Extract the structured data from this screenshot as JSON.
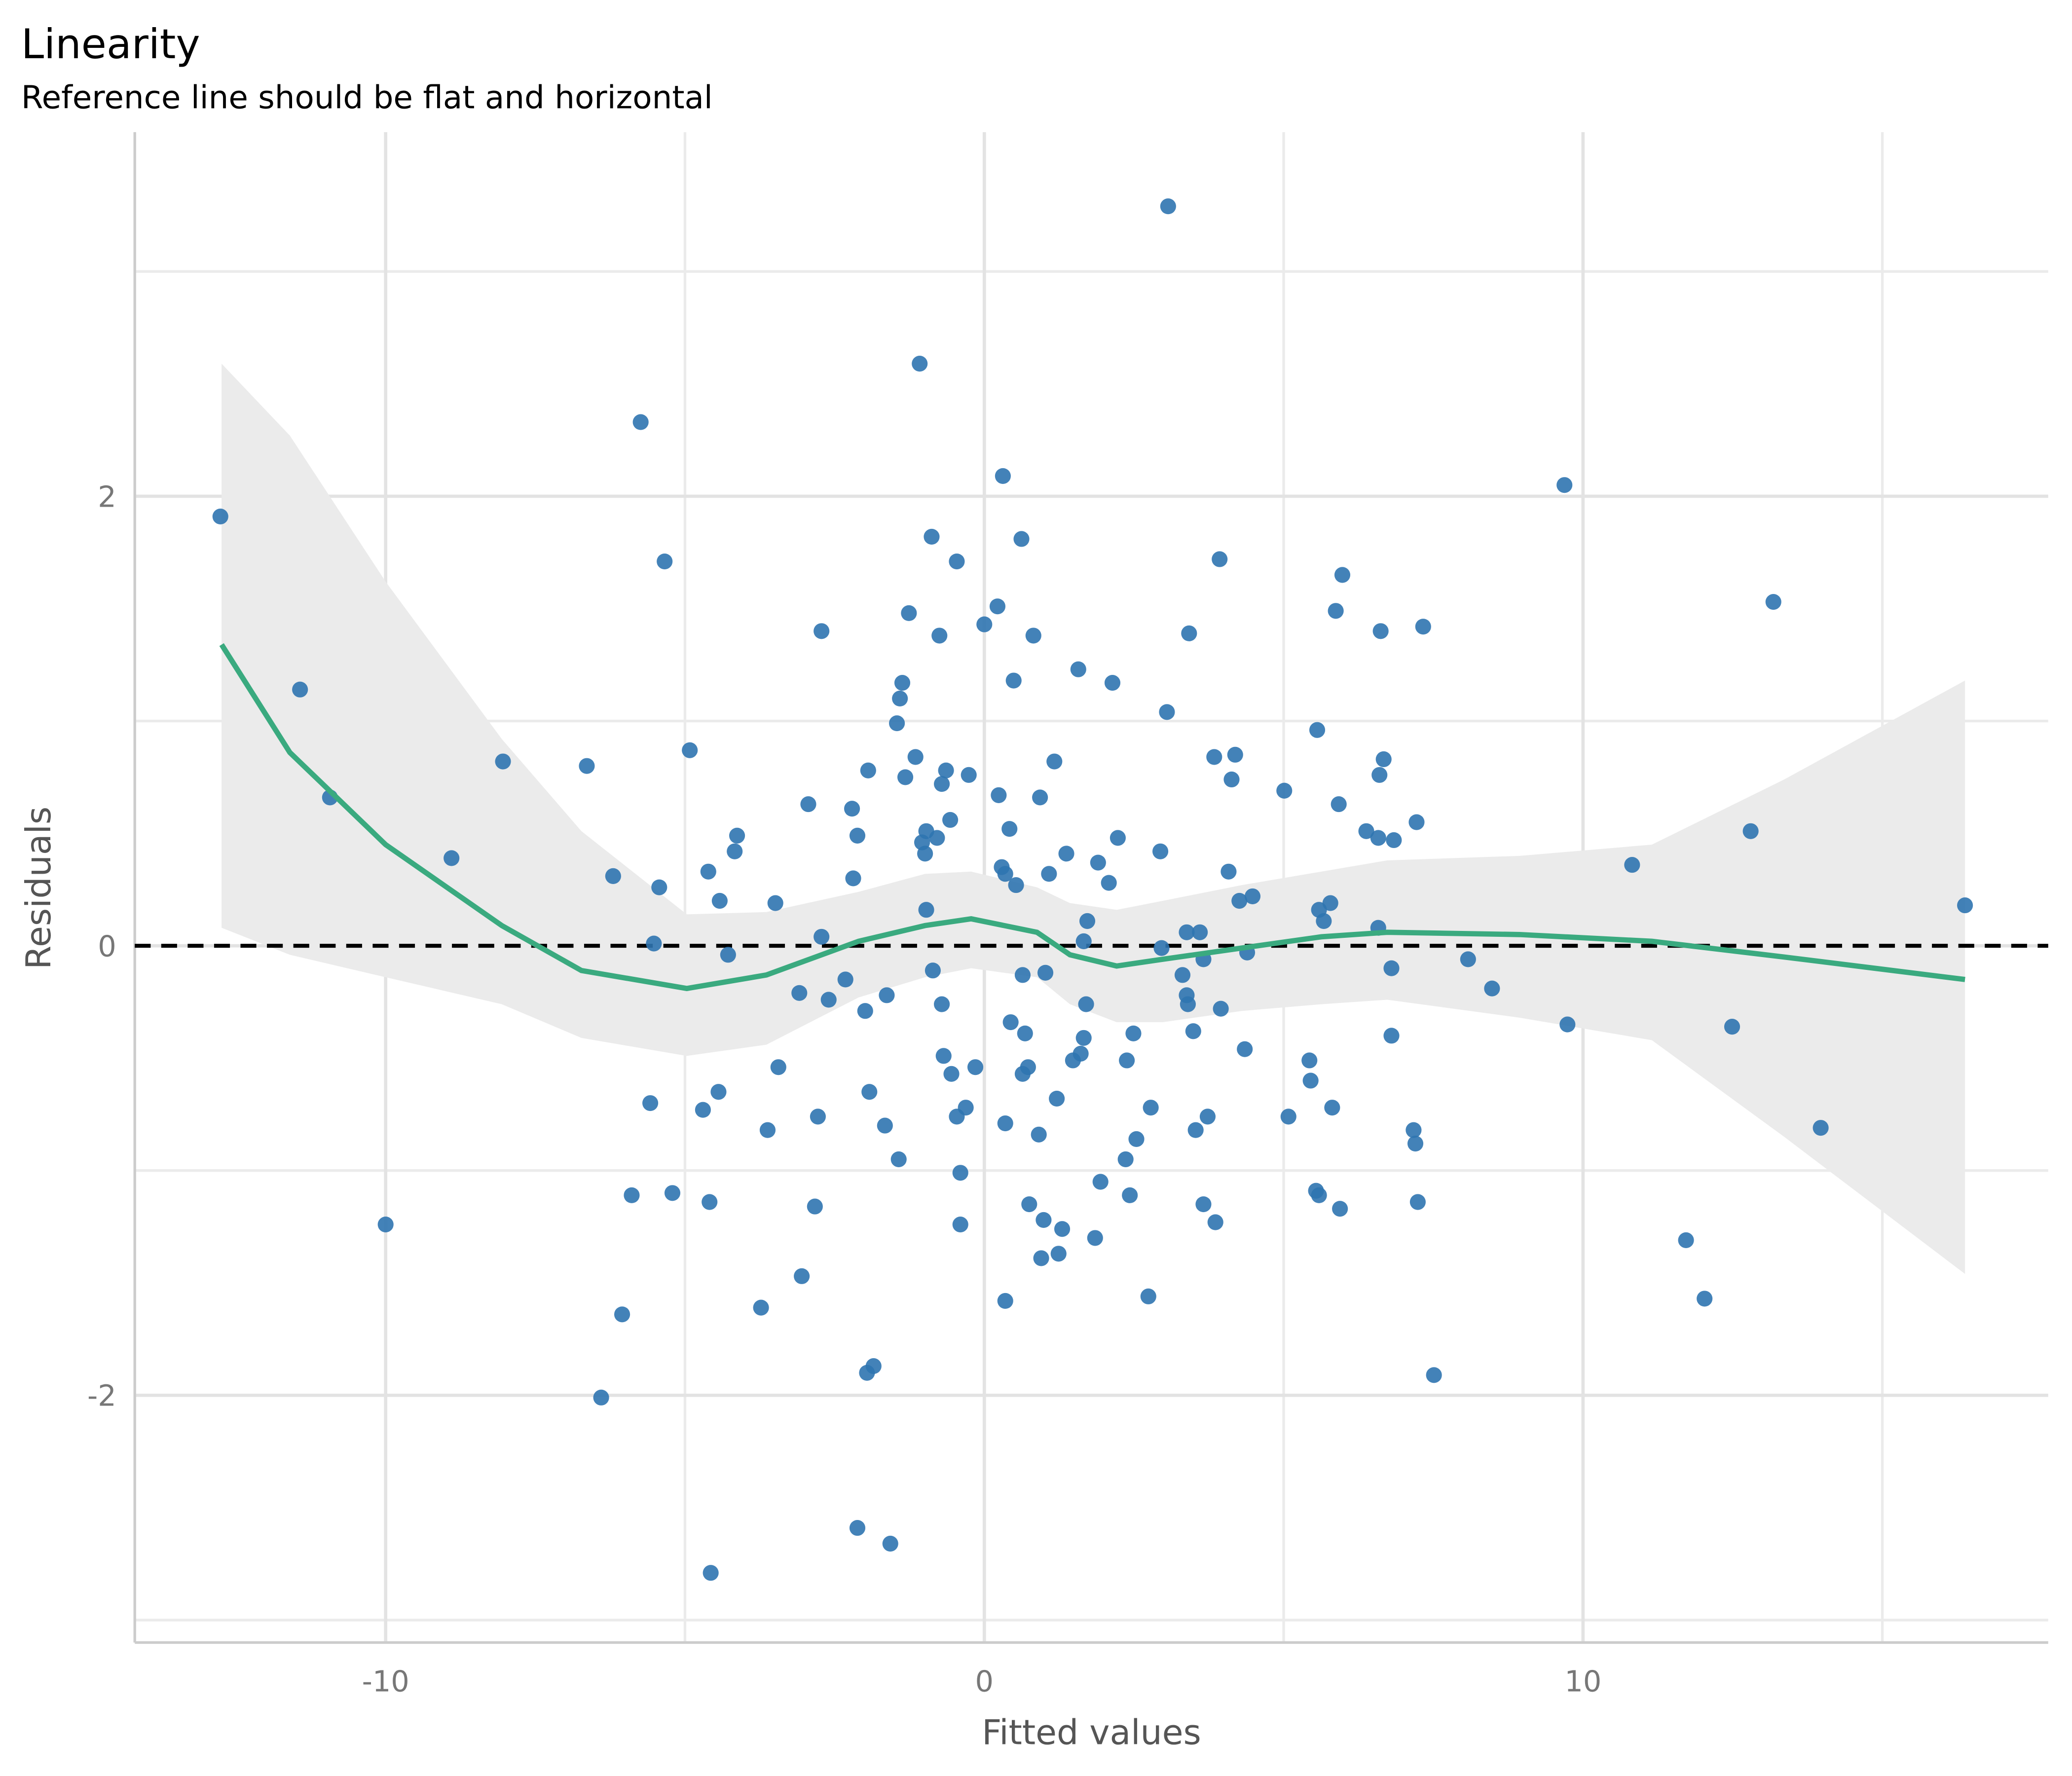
{
  "chart_data": {
    "type": "scatter",
    "title": "Linearity",
    "subtitle": "Reference line should be flat and horizontal",
    "x_label": "Fitted values",
    "y_label": "Residuals",
    "xlim": [
      -14.19,
      17.77
    ],
    "ylim": [
      -3.1,
      3.62
    ],
    "xticks": [
      -10,
      0,
      10
    ],
    "yticks": [
      -2,
      0,
      2
    ],
    "minor_xticks": [
      -5,
      5,
      15
    ],
    "minor_yticks": [
      -3,
      -1,
      1,
      3
    ],
    "grid": true,
    "reference_line": {
      "value": 0,
      "color": "#000000"
    },
    "points": {
      "color": "#2f74b0",
      "x": [
        -12.76,
        -11.43,
        -10.93,
        -10.0,
        -8.9,
        -8.04,
        -6.64,
        -6.4,
        -6.2,
        -6.05,
        -5.89,
        -5.74,
        -5.58,
        -5.52,
        -5.43,
        -5.34,
        -5.21,
        -4.92,
        -4.7,
        -4.61,
        -4.59,
        -4.57,
        -4.44,
        -4.42,
        -4.28,
        -4.17,
        -4.13,
        -3.73,
        -3.62,
        -3.49,
        -3.44,
        -3.09,
        -3.05,
        -2.94,
        -2.83,
        -2.78,
        -2.72,
        -2.72,
        -2.6,
        -2.32,
        -2.21,
        -2.19,
        -2.12,
        -2.12,
        -1.99,
        -1.96,
        -1.94,
        -1.92,
        -1.85,
        -1.66,
        -1.63,
        -1.57,
        -1.46,
        -1.43,
        -1.41,
        -1.37,
        -1.32,
        -1.26,
        -1.15,
        -1.08,
        -1.04,
        -0.99,
        -0.97,
        -0.97,
        -0.88,
        -0.86,
        -0.79,
        -0.75,
        -0.71,
        -0.71,
        -0.68,
        -0.64,
        -0.57,
        -0.55,
        -0.46,
        -0.46,
        -0.4,
        -0.4,
        -0.31,
        -0.26,
        -0.15,
        0.0,
        0.22,
        0.24,
        0.29,
        0.31,
        0.35,
        0.35,
        0.35,
        0.42,
        0.44,
        0.49,
        0.53,
        0.62,
        0.64,
        0.64,
        0.68,
        0.73,
        0.75,
        0.82,
        0.91,
        0.93,
        0.95,
        0.99,
        1.02,
        1.08,
        1.17,
        1.21,
        1.24,
        1.3,
        1.37,
        1.48,
        1.57,
        1.61,
        1.66,
        1.66,
        1.7,
        1.72,
        1.85,
        1.9,
        1.94,
        2.08,
        2.14,
        2.23,
        2.36,
        2.38,
        2.43,
        2.49,
        2.54,
        2.74,
        2.78,
        2.94,
        2.96,
        3.05,
        3.07,
        3.31,
        3.38,
        3.38,
        3.4,
        3.42,
        3.49,
        3.53,
        3.6,
        3.66,
        3.66,
        3.73,
        3.84,
        3.86,
        3.93,
        3.95,
        4.08,
        4.13,
        4.19,
        4.26,
        4.35,
        4.39,
        4.48,
        5.01,
        5.08,
        5.43,
        5.45,
        5.54,
        5.56,
        5.59,
        5.59,
        5.67,
        5.78,
        5.81,
        5.87,
        5.92,
        5.94,
        5.98,
        6.38,
        6.58,
        6.58,
        6.6,
        6.62,
        6.67,
        6.8,
        6.8,
        6.84,
        7.17,
        7.2,
        7.22,
        7.24,
        7.33,
        7.51,
        8.08,
        8.48,
        9.69,
        9.74,
        10.82,
        11.72,
        12.03,
        12.49,
        12.8,
        13.18,
        13.97,
        16.38
      ],
      "y": [
        1.91,
        1.14,
        0.66,
        -1.24,
        0.39,
        0.82,
        0.8,
        -2.01,
        0.31,
        -1.64,
        -1.11,
        2.33,
        -0.7,
        0.01,
        0.26,
        1.71,
        -1.1,
        0.87,
        -0.73,
        0.33,
        -1.14,
        -2.79,
        -0.65,
        0.2,
        -0.04,
        0.42,
        0.49,
        -1.61,
        -0.82,
        0.19,
        -0.54,
        -0.21,
        -1.47,
        0.63,
        -1.16,
        -0.76,
        1.4,
        0.04,
        -0.24,
        -0.15,
        0.61,
        0.3,
        0.49,
        -2.59,
        -0.29,
        -1.9,
        0.78,
        -0.65,
        -1.87,
        -0.8,
        -0.22,
        -2.66,
        0.99,
        -0.95,
        1.1,
        1.17,
        0.75,
        1.48,
        0.84,
        2.59,
        0.46,
        0.41,
        0.51,
        0.16,
        1.82,
        -0.11,
        0.48,
        1.38,
        0.72,
        -0.26,
        -0.49,
        0.78,
        0.56,
        -0.57,
        1.71,
        -0.76,
        -1.24,
        -1.01,
        -0.72,
        0.76,
        -0.54,
        1.43,
        1.51,
        0.67,
        0.35,
        2.09,
        0.32,
        -0.79,
        -1.58,
        0.52,
        -0.34,
        1.18,
        0.27,
        1.81,
        -0.13,
        -0.57,
        -0.39,
        -0.54,
        -1.15,
        1.38,
        -0.84,
        0.66,
        -1.39,
        -1.22,
        -0.12,
        0.32,
        0.82,
        -0.68,
        -1.37,
        -1.26,
        0.41,
        -0.51,
        1.23,
        -0.48,
        -0.41,
        0.02,
        -0.26,
        0.11,
        -1.3,
        0.37,
        -1.05,
        0.28,
        1.17,
        0.48,
        -0.95,
        -0.51,
        -1.11,
        -0.39,
        -0.86,
        -1.56,
        -0.72,
        0.42,
        -0.01,
        1.04,
        3.29,
        -0.13,
        0.06,
        -0.22,
        -0.26,
        1.39,
        -0.38,
        -0.82,
        0.06,
        -0.06,
        -1.15,
        -0.76,
        0.84,
        -1.23,
        1.72,
        -0.28,
        0.33,
        0.74,
        0.85,
        0.2,
        -0.46,
        -0.03,
        0.22,
        0.69,
        -0.76,
        -0.51,
        -0.6,
        -1.09,
        0.96,
        0.16,
        -1.11,
        0.11,
        0.19,
        -0.72,
        1.49,
        0.63,
        -1.17,
        1.65,
        0.51,
        0.08,
        0.48,
        0.76,
        1.4,
        0.83,
        -0.1,
        -0.4,
        0.47,
        -0.82,
        -0.88,
        0.55,
        -1.14,
        1.42,
        -1.91,
        -0.06,
        -0.19,
        2.05,
        -0.35,
        0.36,
        -1.31,
        -1.57,
        -0.36,
        0.51,
        1.53,
        -0.81,
        0.18
      ]
    },
    "smooth": {
      "color": "#3aaa7f",
      "band_color": "#ebebeb",
      "x": [
        -12.74,
        -11.6,
        -10,
        -8.06,
        -6.73,
        -4.97,
        -3.64,
        -2.1,
        -0.99,
        -0.22,
        0.88,
        1.43,
        2.21,
        2.98,
        4.3,
        5.63,
        6.73,
        8.94,
        11.15,
        13.36,
        16.38
      ],
      "y": [
        1.34,
        0.86,
        0.45,
        0.09,
        -0.11,
        -0.19,
        -0.13,
        0.02,
        0.09,
        0.12,
        0.06,
        -0.04,
        -0.09,
        -0.06,
        -0.01,
        0.04,
        0.06,
        0.05,
        0.02,
        -0.05,
        -0.15
      ],
      "upper": [
        2.59,
        2.27,
        1.62,
        0.92,
        0.51,
        0.14,
        0.15,
        0.24,
        0.32,
        0.33,
        0.26,
        0.19,
        0.16,
        0.2,
        0.27,
        0.33,
        0.38,
        0.4,
        0.45,
        0.74,
        1.18
      ],
      "lower": [
        0.08,
        -0.04,
        -0.14,
        -0.26,
        -0.41,
        -0.49,
        -0.44,
        -0.23,
        -0.14,
        -0.1,
        -0.14,
        -0.26,
        -0.34,
        -0.34,
        -0.29,
        -0.26,
        -0.24,
        -0.32,
        -0.42,
        -0.85,
        -1.46
      ]
    }
  }
}
